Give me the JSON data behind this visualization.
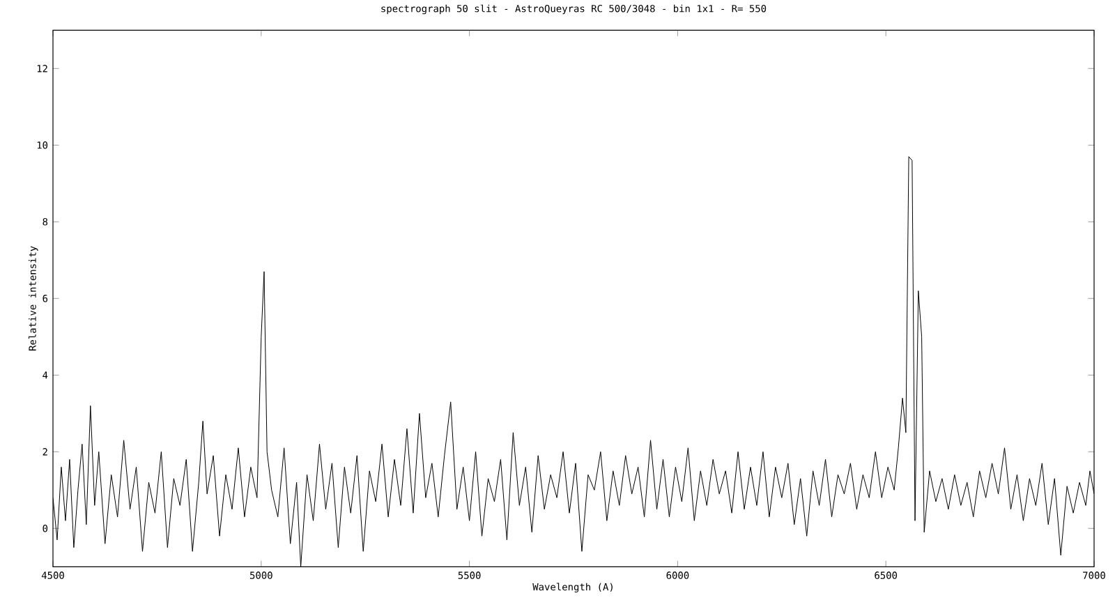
{
  "chart_data": {
    "type": "line",
    "title": "spectrograph 50 slit - AstroQueyras RC 500/3048 - bin 1x1 - R= 550",
    "xlabel": "Wavelength (A)",
    "ylabel": "Relative intensity",
    "xlim": [
      4500,
      7000
    ],
    "ylim": [
      -1,
      13
    ],
    "xticks": [
      4500,
      5000,
      5500,
      6000,
      6500,
      7000
    ],
    "yticks": [
      0,
      2,
      4,
      6,
      8,
      10,
      12
    ],
    "grid": false,
    "marker": "none",
    "line_style": "solid",
    "series": [
      {
        "color": "#000000",
        "x": [
          4500,
          4510,
          4520,
          4530,
          4540,
          4550,
          4560,
          4570,
          4580,
          4590,
          4600,
          4610,
          4625,
          4640,
          4655,
          4670,
          4685,
          4700,
          4715,
          4730,
          4745,
          4760,
          4775,
          4790,
          4805,
          4820,
          4835,
          4850,
          4860,
          4870,
          4885,
          4900,
          4915,
          4930,
          4945,
          4960,
          4975,
          4990,
          5000,
          5007,
          5014,
          5025,
          5040,
          5055,
          5070,
          5085,
          5095,
          5110,
          5125,
          5140,
          5155,
          5170,
          5185,
          5200,
          5215,
          5230,
          5245,
          5260,
          5275,
          5290,
          5305,
          5320,
          5335,
          5350,
          5365,
          5380,
          5395,
          5410,
          5425,
          5440,
          5455,
          5470,
          5485,
          5500,
          5515,
          5530,
          5545,
          5560,
          5575,
          5590,
          5605,
          5620,
          5635,
          5650,
          5665,
          5680,
          5695,
          5710,
          5725,
          5740,
          5755,
          5770,
          5785,
          5800,
          5815,
          5830,
          5845,
          5860,
          5875,
          5890,
          5905,
          5920,
          5935,
          5950,
          5965,
          5980,
          5995,
          6010,
          6025,
          6040,
          6055,
          6070,
          6085,
          6100,
          6115,
          6130,
          6145,
          6160,
          6175,
          6190,
          6205,
          6220,
          6235,
          6250,
          6265,
          6280,
          6295,
          6310,
          6325,
          6340,
          6355,
          6370,
          6385,
          6400,
          6415,
          6430,
          6445,
          6460,
          6475,
          6490,
          6505,
          6520,
          6530,
          6540,
          6548,
          6555,
          6563,
          6570,
          6578,
          6586,
          6592,
          6605,
          6620,
          6635,
          6650,
          6665,
          6680,
          6695,
          6710,
          6725,
          6740,
          6755,
          6770,
          6785,
          6800,
          6815,
          6830,
          6845,
          6860,
          6875,
          6890,
          6905,
          6920,
          6935,
          6950,
          6965,
          6980,
          6990,
          7000
        ],
        "values": [
          0.8,
          -0.3,
          1.6,
          0.2,
          1.8,
          -0.5,
          1.0,
          2.2,
          0.1,
          3.2,
          0.6,
          2.0,
          -0.4,
          1.4,
          0.3,
          2.3,
          0.5,
          1.6,
          -0.6,
          1.2,
          0.4,
          2.0,
          -0.5,
          1.3,
          0.6,
          1.8,
          -0.6,
          1.2,
          2.8,
          0.9,
          1.9,
          -0.2,
          1.4,
          0.5,
          2.1,
          0.3,
          1.6,
          0.8,
          5.0,
          6.7,
          2.0,
          1.0,
          0.3,
          2.1,
          -0.4,
          1.2,
          -1.0,
          1.4,
          0.2,
          2.2,
          0.5,
          1.7,
          -0.5,
          1.6,
          0.4,
          1.9,
          -0.6,
          1.5,
          0.7,
          2.2,
          0.3,
          1.8,
          0.6,
          2.6,
          0.4,
          3.0,
          0.8,
          1.7,
          0.3,
          1.9,
          3.3,
          0.5,
          1.6,
          0.2,
          2.0,
          -0.2,
          1.3,
          0.7,
          1.8,
          -0.3,
          2.5,
          0.6,
          1.6,
          -0.1,
          1.9,
          0.5,
          1.4,
          0.8,
          2.0,
          0.4,
          1.7,
          -0.6,
          1.4,
          1.0,
          2.0,
          0.2,
          1.5,
          0.6,
          1.9,
          0.9,
          1.6,
          0.3,
          2.3,
          0.5,
          1.8,
          0.3,
          1.6,
          0.7,
          2.1,
          0.2,
          1.5,
          0.6,
          1.8,
          0.9,
          1.5,
          0.4,
          2.0,
          0.5,
          1.6,
          0.6,
          2.0,
          0.3,
          1.6,
          0.8,
          1.7,
          0.1,
          1.3,
          -0.2,
          1.5,
          0.6,
          1.8,
          0.3,
          1.4,
          0.9,
          1.7,
          0.5,
          1.4,
          0.8,
          2.0,
          0.8,
          1.6,
          1.0,
          2.1,
          3.4,
          2.5,
          9.7,
          9.6,
          0.2,
          6.2,
          5.0,
          -0.1,
          1.5,
          0.7,
          1.3,
          0.5,
          1.4,
          0.6,
          1.2,
          0.3,
          1.5,
          0.8,
          1.7,
          0.9,
          2.1,
          0.5,
          1.4,
          0.2,
          1.3,
          0.6,
          1.7,
          0.1,
          1.3,
          -0.7,
          1.1,
          0.4,
          1.2,
          0.6,
          1.5,
          0.9
        ]
      }
    ]
  }
}
